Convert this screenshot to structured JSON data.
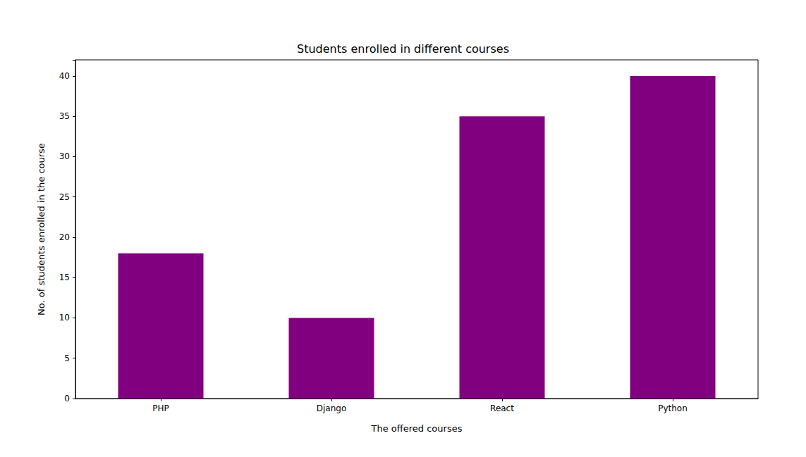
{
  "chart_data": {
    "type": "bar",
    "title": "Students enrolled in different courses",
    "x_label": "The offered courses",
    "y_label": "No. of students enrolled in the course",
    "categories": [
      "PHP",
      "Django",
      "React",
      "Python"
    ],
    "values": [
      18,
      10,
      35,
      40
    ],
    "color": "#800080",
    "ylim": [
      0,
      42
    ],
    "yticks": [
      0,
      5,
      10,
      15,
      20,
      25,
      30,
      35,
      40
    ],
    "grid": false
  }
}
